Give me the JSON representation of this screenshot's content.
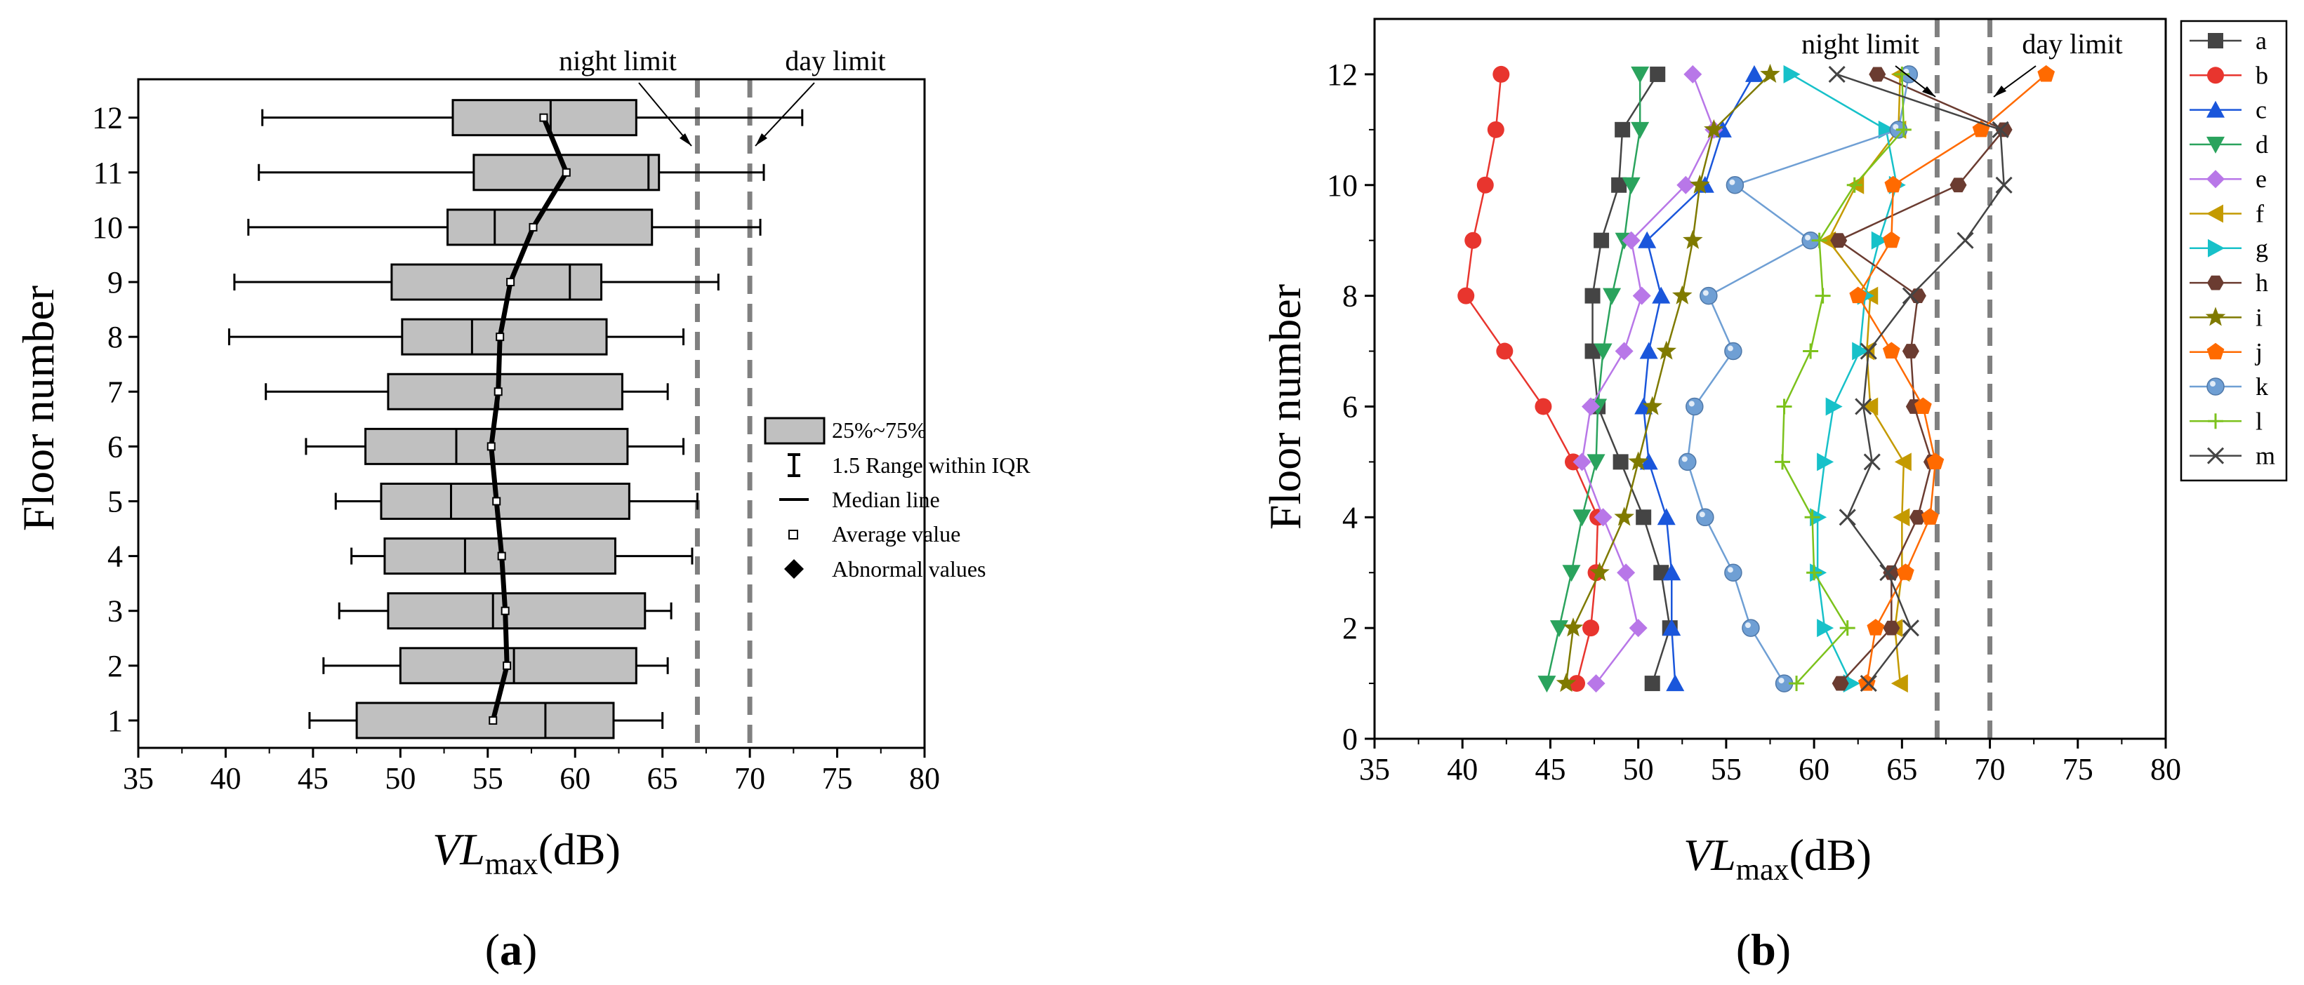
{
  "chart_data": [
    {
      "id": "a",
      "type": "boxplot",
      "panel_label_open": "(",
      "panel_label_letter": "a",
      "panel_label_close": ")",
      "xlabel_italic": "VL",
      "xlabel_sub": "max",
      "xlabel_unit": "(dB)",
      "ylabel": "Floor number",
      "xlim": [
        35,
        80
      ],
      "ylim": [
        0.5,
        12.7
      ],
      "x_ticks": [
        35,
        40,
        45,
        50,
        55,
        60,
        65,
        70,
        75,
        80
      ],
      "y_ticks": [
        1,
        2,
        3,
        4,
        5,
        6,
        7,
        8,
        9,
        10,
        11,
        12
      ],
      "reference_lines": [
        {
          "label": "night limit",
          "x": 67
        },
        {
          "label": "day limit",
          "x": 70
        }
      ],
      "boxes": [
        {
          "floor": 1,
          "whisker_low": 44.8,
          "q1": 47.5,
          "median": 58.3,
          "q3": 62.2,
          "whisker_high": 65.0,
          "mean": 55.3
        },
        {
          "floor": 2,
          "whisker_low": 45.6,
          "q1": 50.0,
          "median": 56.5,
          "q3": 63.5,
          "whisker_high": 65.3,
          "mean": 56.1
        },
        {
          "floor": 3,
          "whisker_low": 46.5,
          "q1": 49.3,
          "median": 55.3,
          "q3": 64.0,
          "whisker_high": 65.5,
          "mean": 56.0
        },
        {
          "floor": 4,
          "whisker_low": 47.2,
          "q1": 49.1,
          "median": 53.7,
          "q3": 62.3,
          "whisker_high": 66.7,
          "mean": 55.8
        },
        {
          "floor": 5,
          "whisker_low": 46.3,
          "q1": 48.9,
          "median": 52.9,
          "q3": 63.1,
          "whisker_high": 67.0,
          "mean": 55.5
        },
        {
          "floor": 6,
          "whisker_low": 44.6,
          "q1": 48.0,
          "median": 53.2,
          "q3": 63.0,
          "whisker_high": 66.2,
          "mean": 55.2
        },
        {
          "floor": 7,
          "whisker_low": 42.3,
          "q1": 49.3,
          "median": 55.6,
          "q3": 62.7,
          "whisker_high": 65.3,
          "mean": 55.6
        },
        {
          "floor": 8,
          "whisker_low": 40.2,
          "q1": 50.1,
          "median": 54.1,
          "q3": 61.8,
          "whisker_high": 66.2,
          "mean": 55.7
        },
        {
          "floor": 9,
          "whisker_low": 40.5,
          "q1": 49.5,
          "median": 59.7,
          "q3": 61.5,
          "whisker_high": 68.2,
          "mean": 56.3
        },
        {
          "floor": 10,
          "whisker_low": 41.3,
          "q1": 52.7,
          "median": 55.4,
          "q3": 64.4,
          "whisker_high": 70.6,
          "mean": 57.6
        },
        {
          "floor": 11,
          "whisker_low": 41.9,
          "q1": 54.2,
          "median": 64.2,
          "q3": 64.8,
          "whisker_high": 70.8,
          "mean": 59.5
        },
        {
          "floor": 12,
          "whisker_low": 42.1,
          "q1": 53.0,
          "median": 58.6,
          "q3": 63.5,
          "whisker_high": 73.0,
          "mean": 58.2
        }
      ],
      "legend": [
        {
          "key": "box",
          "label": "25%~75%"
        },
        {
          "key": "whisker",
          "label": "1.5 Range within IQR"
        },
        {
          "key": "median",
          "label": "Median line"
        },
        {
          "key": "mean",
          "label": "Average value"
        },
        {
          "key": "outlier",
          "label": "Abnormal values"
        }
      ],
      "colors": {
        "box_fill": "#c0c0c0",
        "ref_line": "#808080"
      }
    },
    {
      "id": "b",
      "type": "line",
      "panel_label_open": "(",
      "panel_label_letter": "b",
      "panel_label_close": ")",
      "xlabel_italic": "VL",
      "xlabel_sub": "max",
      "xlabel_unit": "(dB)",
      "ylabel": "Floor number",
      "xlim": [
        35,
        80
      ],
      "ylim": [
        0,
        13
      ],
      "x_ticks": [
        35,
        40,
        45,
        50,
        55,
        60,
        65,
        70,
        75,
        80
      ],
      "y_ticks": [
        0,
        2,
        4,
        6,
        8,
        10,
        12
      ],
      "floors": [
        1,
        2,
        3,
        4,
        5,
        6,
        7,
        8,
        9,
        10,
        11,
        12
      ],
      "reference_lines": [
        {
          "label": "night limit",
          "x": 67
        },
        {
          "label": "day limit",
          "x": 70
        }
      ],
      "series": [
        {
          "name": "a",
          "marker": "square",
          "color": "#444444",
          "values": [
            50.8,
            51.8,
            51.3,
            50.3,
            49.0,
            47.7,
            47.4,
            47.4,
            47.9,
            48.9,
            49.1,
            51.1
          ]
        },
        {
          "name": "b",
          "marker": "circle",
          "color": "#e8352e",
          "values": [
            46.5,
            47.3,
            47.6,
            47.7,
            46.3,
            44.6,
            42.4,
            40.2,
            40.6,
            41.3,
            41.9,
            42.2
          ]
        },
        {
          "name": "c",
          "marker": "triangle-up",
          "color": "#1a56db",
          "values": [
            52.1,
            51.9,
            51.9,
            51.6,
            50.6,
            50.3,
            50.6,
            51.3,
            50.5,
            53.8,
            54.8,
            56.6
          ]
        },
        {
          "name": "d",
          "marker": "triangle-down",
          "color": "#2aa35d",
          "values": [
            44.8,
            45.5,
            46.2,
            46.8,
            47.6,
            47.7,
            48.0,
            48.5,
            49.2,
            49.6,
            50.1,
            50.1
          ]
        },
        {
          "name": "e",
          "marker": "diamond",
          "color": "#b877e8",
          "values": [
            47.6,
            50.0,
            49.3,
            48.0,
            46.8,
            47.3,
            49.2,
            50.2,
            49.6,
            52.7,
            54.3,
            53.1
          ]
        },
        {
          "name": "f",
          "marker": "triangle-left",
          "color": "#c49a00",
          "values": [
            64.9,
            64.6,
            65.0,
            65.0,
            65.1,
            63.2,
            63.0,
            63.2,
            60.8,
            62.4,
            64.8,
            64.9
          ]
        },
        {
          "name": "g",
          "marker": "triangle-right",
          "color": "#17c1c9",
          "values": [
            62.1,
            60.6,
            60.2,
            60.2,
            60.6,
            61.1,
            62.6,
            62.9,
            63.7,
            64.7,
            64.1,
            58.7
          ]
        },
        {
          "name": "h",
          "marker": "hexagon",
          "color": "#6b3c31",
          "values": [
            61.5,
            64.4,
            64.4,
            65.9,
            66.7,
            65.7,
            65.5,
            65.9,
            61.4,
            68.2,
            70.8,
            63.6
          ]
        },
        {
          "name": "i",
          "marker": "star",
          "color": "#7f7a00",
          "values": [
            45.9,
            46.3,
            47.8,
            49.2,
            50.0,
            50.8,
            51.6,
            52.5,
            53.1,
            53.5,
            54.3,
            57.5
          ]
        },
        {
          "name": "j",
          "marker": "pentagon",
          "color": "#ff6a00",
          "values": [
            63.0,
            63.5,
            65.2,
            66.6,
            66.9,
            66.2,
            64.4,
            62.5,
            64.4,
            64.5,
            69.5,
            73.2
          ]
        },
        {
          "name": "k",
          "marker": "circle-gradient",
          "color": "#6f9fd4",
          "values": [
            58.3,
            56.4,
            55.4,
            53.8,
            52.8,
            53.2,
            55.4,
            54.0,
            59.8,
            55.5,
            64.8,
            65.4
          ]
        },
        {
          "name": "l",
          "marker": "plus",
          "color": "#7cc21c",
          "values": [
            59.0,
            61.9,
            60.0,
            59.9,
            58.2,
            58.3,
            59.8,
            60.5,
            60.3,
            62.3,
            65.1,
            65.0
          ]
        },
        {
          "name": "m",
          "marker": "x",
          "color": "#444444",
          "values": [
            63.1,
            65.5,
            64.2,
            61.9,
            63.3,
            62.8,
            63.1,
            65.5,
            68.6,
            70.8,
            70.6,
            61.3
          ]
        }
      ]
    }
  ]
}
